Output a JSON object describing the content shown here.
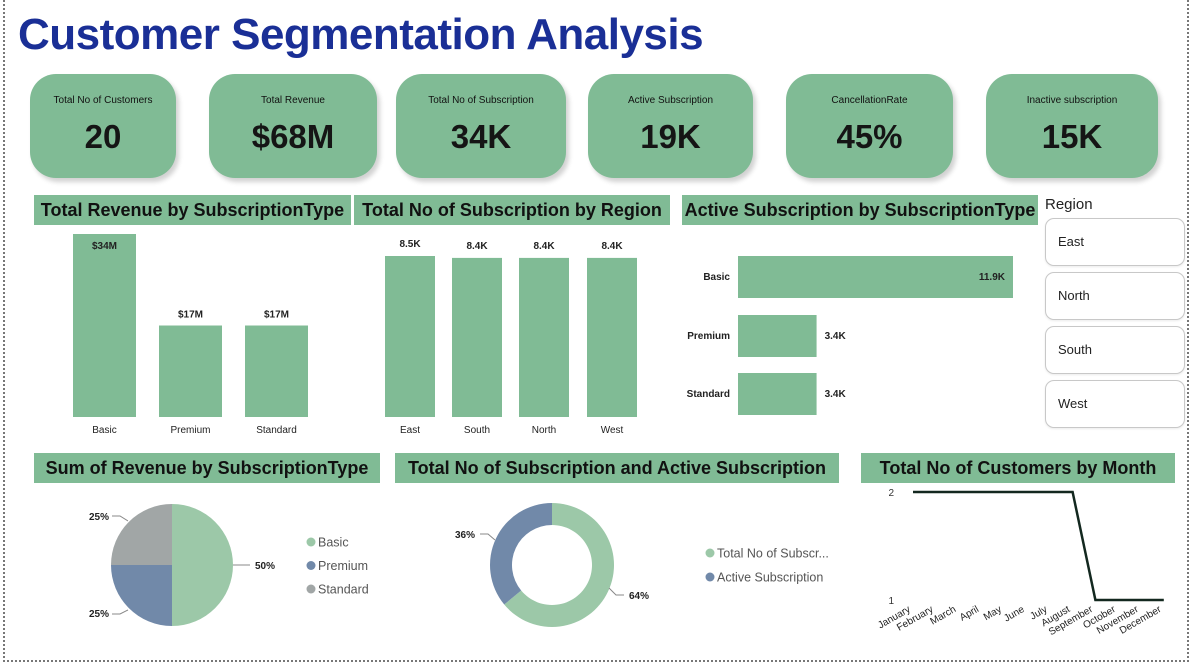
{
  "title": "Customer Segmentation Analysis",
  "kpis": [
    {
      "label": "Total No of Customers",
      "value": "20"
    },
    {
      "label": "Total Revenue",
      "value": "$68M"
    },
    {
      "label": "Total No of Subscription",
      "value": "34K"
    },
    {
      "label": "Active Subscription",
      "value": "19K"
    },
    {
      "label": "CancellationRate",
      "value": "45%"
    },
    {
      "label": "Inactive subscription",
      "value": "15K"
    }
  ],
  "slicer": {
    "title": "Region",
    "items": [
      "East",
      "North",
      "South",
      "West"
    ]
  },
  "colors": {
    "green": "#80bb95",
    "pie_green": "#9cc8a8",
    "blue": "#7189a9",
    "grey": "#a1a6a6",
    "navy": "#1a2f96",
    "line": "#13281f"
  },
  "chart_data": [
    {
      "id": "revenue_by_type",
      "type": "bar",
      "title": "Total Revenue by SubscriptionType",
      "categories": [
        "Basic",
        "Premium",
        "Standard"
      ],
      "values": [
        34,
        17,
        17
      ],
      "labels": [
        "$34M",
        "$17M",
        "$17M"
      ],
      "ylim": [
        0,
        34
      ]
    },
    {
      "id": "subs_by_region",
      "type": "bar",
      "title": "Total No of Subscription by Region",
      "categories": [
        "East",
        "South",
        "North",
        "West"
      ],
      "values": [
        8.5,
        8.4,
        8.4,
        8.4
      ],
      "labels": [
        "8.5K",
        "8.4K",
        "8.4K",
        "8.4K"
      ],
      "ylim": [
        0,
        8.5
      ]
    },
    {
      "id": "active_by_type",
      "type": "bar",
      "orientation": "horizontal",
      "title": "Active Subscription by SubscriptionType",
      "categories": [
        "Basic",
        "Premium",
        "Standard"
      ],
      "values": [
        11.9,
        3.4,
        3.4
      ],
      "labels": [
        "11.9K",
        "3.4K",
        "3.4K"
      ],
      "xlim": [
        0,
        11.9
      ]
    },
    {
      "id": "revenue_share",
      "type": "pie",
      "title": "Sum of Revenue by SubscriptionType",
      "categories": [
        "Basic",
        "Premium",
        "Standard"
      ],
      "values": [
        50,
        25,
        25
      ],
      "labels": [
        "50%",
        "25%",
        "25%"
      ]
    },
    {
      "id": "total_vs_active",
      "type": "pie",
      "donut": true,
      "title": "Total No of Subscription and Active Subscription",
      "categories": [
        "Total No of Subscr...",
        "Active Subscription"
      ],
      "values": [
        64,
        36
      ],
      "labels": [
        "64%",
        "36%"
      ]
    },
    {
      "id": "customers_by_month",
      "type": "line",
      "title": "Total No of Customers by Month",
      "x": [
        "January",
        "February",
        "March",
        "April",
        "May",
        "June",
        "July",
        "August",
        "September",
        "October",
        "November",
        "December"
      ],
      "y": [
        2,
        2,
        2,
        2,
        2,
        2,
        2,
        2,
        1,
        1,
        1,
        1
      ],
      "yticks": [
        "2",
        "1"
      ],
      "ylim": [
        1,
        2
      ]
    }
  ]
}
